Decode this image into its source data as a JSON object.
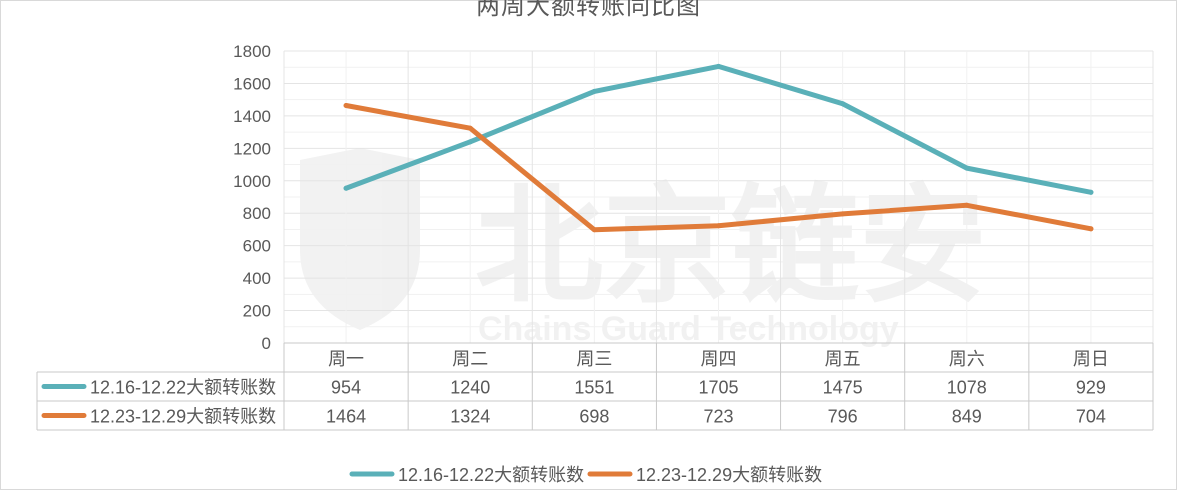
{
  "chart_data": {
    "type": "line",
    "title": "两周大额转账同比图",
    "categories": [
      "周一",
      "周二",
      "周三",
      "周四",
      "周五",
      "周六",
      "周日"
    ],
    "ylim": [
      0,
      1800
    ],
    "yticks": [
      0,
      200,
      400,
      600,
      800,
      1000,
      1200,
      1400,
      1600,
      1800
    ],
    "grid": true,
    "legend_position": "bottom",
    "data_table": true,
    "series": [
      {
        "name": "12.16-12.22大额转账数",
        "color": "#5ab0b8",
        "values": [
          954,
          1240,
          1551,
          1705,
          1475,
          1078,
          929
        ]
      },
      {
        "name": "12.23-12.29大额转账数",
        "color": "#e07b39",
        "values": [
          1464,
          1324,
          698,
          723,
          796,
          849,
          704
        ]
      }
    ]
  },
  "watermark": {
    "text_cn": "北京链安",
    "text_en": "Chains Guard Technology"
  }
}
